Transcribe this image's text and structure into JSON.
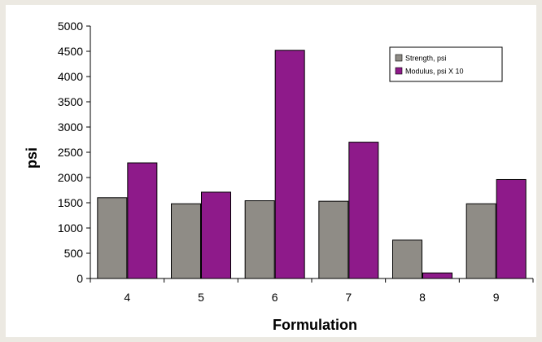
{
  "chart_data": {
    "type": "bar",
    "categories": [
      "4",
      "5",
      "6",
      "7",
      "8",
      "9"
    ],
    "series": [
      {
        "name": "Strength, psi",
        "color": "#8f8c86",
        "values": [
          1600,
          1480,
          1540,
          1530,
          760,
          1480
        ]
      },
      {
        "name": "Modulus, psi X 10",
        "color": "#8e1a8a",
        "values": [
          2290,
          1710,
          4520,
          2700,
          110,
          1960
        ]
      }
    ],
    "yticks": [
      0,
      500,
      1000,
      1500,
      2000,
      2500,
      3000,
      3500,
      4000,
      4500,
      5000
    ],
    "ylim": [
      0,
      5000
    ],
    "xlabel": "Formulation",
    "ylabel": "psi",
    "title": "",
    "grid": false,
    "legend_position": "top-right"
  }
}
